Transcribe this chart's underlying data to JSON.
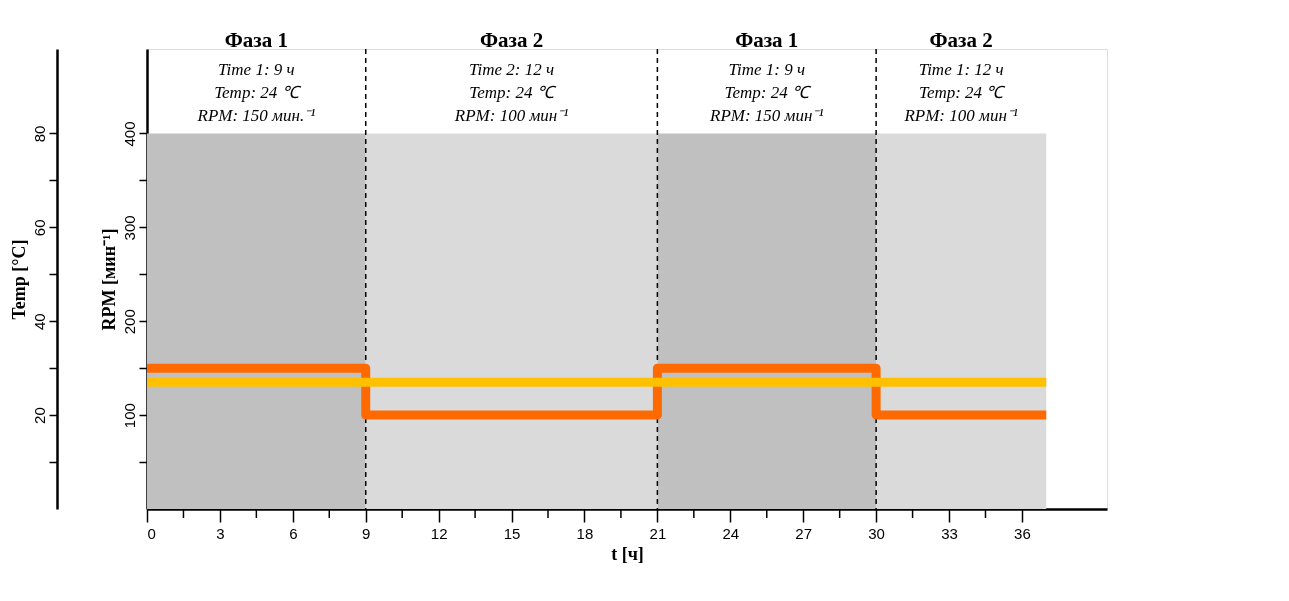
{
  "chart_data": {
    "type": "step",
    "xlabel": "t [ч]",
    "ylabel": "RPM [мин⁻¹]",
    "y2label": "Temp [°C]",
    "xlim": [
      0,
      39.5
    ],
    "xticks": [
      {
        "value": 0,
        "label": "0"
      },
      {
        "value": 1.5,
        "label": null
      },
      3,
      {
        "value": 4.5,
        "label": null
      },
      6,
      {
        "value": 7.5,
        "label": null
      },
      9,
      {
        "value": 10.5,
        "label": null
      },
      12,
      {
        "value": 13.5,
        "label": null
      },
      15,
      {
        "value": 16.5,
        "label": null
      },
      18,
      {
        "value": 19.5,
        "label": null
      },
      21,
      {
        "value": 22.5,
        "label": null
      },
      24,
      {
        "value": 25.5,
        "label": null
      },
      27,
      {
        "value": 28.5,
        "label": null
      },
      30,
      {
        "value": 31.5,
        "label": null
      },
      33,
      {
        "value": 34.5,
        "label": null
      },
      36
    ],
    "ylim": [
      0,
      490
    ],
    "yticks": [
      {
        "value": 50,
        "label": null
      },
      100,
      {
        "value": 150,
        "label": null
      },
      200,
      {
        "value": 250,
        "label": null
      },
      300,
      {
        "value": 350,
        "label": null
      },
      400
    ],
    "y2lim": [
      0,
      98
    ],
    "y2ticks": [
      {
        "value": 10,
        "label": null
      },
      20,
      {
        "value": 30,
        "label": null
      },
      40,
      {
        "value": 50,
        "label": null
      },
      60,
      {
        "value": 70,
        "label": null
      },
      80
    ],
    "grid": false,
    "series": [
      {
        "color": "#ffc000",
        "axis": "y2",
        "x": [
          0,
          37
        ],
        "values": [
          27,
          27
        ]
      },
      {
        "color": "#ff6a00",
        "axis": "y",
        "x": [
          0,
          9,
          21,
          30,
          37
        ],
        "values": [
          150,
          100,
          150,
          100,
          100
        ]
      }
    ],
    "bands": [
      {
        "axis": "x",
        "from": 0,
        "to": 9,
        "color": "#c0c0c0",
        "label": "Фаза 1\nTime 1: 9 ч\nTemp: 24 ℃\nRPM: 150 мин.⁻¹"
      },
      {
        "axis": "x",
        "from": 9,
        "to": 21,
        "color": "#dadada",
        "label": "Фаза 2\nTime 2: 12 ч\nTemp: 24 ℃\nRPM: 100 мин⁻¹"
      },
      {
        "axis": "x",
        "from": 21,
        "to": 30,
        "color": "#c0c0c0",
        "label": "Фаза 1\nTime 1: 9 ч\nTemp: 24 ℃\nRPM: 150 мин⁻¹"
      },
      {
        "axis": "x",
        "from": 30,
        "to": 37,
        "color": "#dadada",
        "label": "Фаза 2\nTime 1: 12 ч\nTemp: 24 ℃\nRPM: 100 мин⁻¹"
      }
    ],
    "ref_lines": [
      {
        "axis": "x",
        "value": 9,
        "color": "#000000",
        "line_style": "dashed"
      },
      {
        "axis": "x",
        "value": 21,
        "color": "#000000",
        "line_style": "dashed"
      },
      {
        "axis": "x",
        "value": 30,
        "color": "#000000",
        "line_style": "dashed"
      }
    ]
  }
}
